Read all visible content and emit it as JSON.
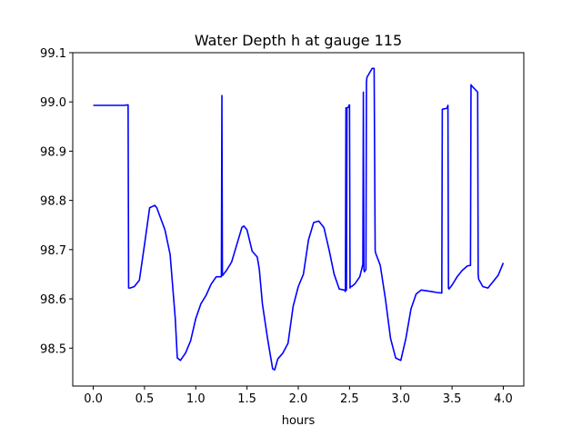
{
  "chart_data": {
    "type": "line",
    "title": "Water Depth h at gauge 115",
    "xlabel": "hours",
    "ylabel": "",
    "xlim": [
      -0.2,
      4.2
    ],
    "ylim": [
      98.423,
      99.1
    ],
    "xticks": [
      0.0,
      0.5,
      1.0,
      1.5,
      2.0,
      2.5,
      3.0,
      3.5,
      4.0
    ],
    "xtick_labels": [
      "0.0",
      "0.5",
      "1.0",
      "1.5",
      "2.0",
      "2.5",
      "3.0",
      "3.5",
      "4.0"
    ],
    "yticks": [
      98.5,
      98.6,
      98.7,
      98.8,
      98.9,
      99.0,
      99.1
    ],
    "ytick_labels": [
      "98.5",
      "98.6",
      "98.7",
      "98.8",
      "98.9",
      "99.0",
      "99.1"
    ],
    "grid": false,
    "legend": "none",
    "series": [
      {
        "color": "#0000ff",
        "x": [
          0.0,
          0.1,
          0.2,
          0.3,
          0.34,
          0.345,
          0.36,
          0.4,
          0.45,
          0.5,
          0.55,
          0.6,
          0.62,
          0.65,
          0.7,
          0.75,
          0.8,
          0.82,
          0.85,
          0.9,
          0.95,
          1.0,
          1.05,
          1.1,
          1.15,
          1.2,
          1.25,
          1.255,
          1.26,
          1.265,
          1.27,
          1.3,
          1.35,
          1.4,
          1.45,
          1.47,
          1.5,
          1.55,
          1.6,
          1.62,
          1.65,
          1.7,
          1.75,
          1.77,
          1.8,
          1.85,
          1.9,
          1.95,
          2.0,
          2.05,
          2.1,
          2.15,
          2.2,
          2.25,
          2.3,
          2.35,
          2.4,
          2.45,
          2.46,
          2.465,
          2.47,
          2.47,
          2.475,
          2.48,
          2.49,
          2.495,
          2.5,
          2.505,
          2.51,
          2.52,
          2.55,
          2.6,
          2.63,
          2.635,
          2.64,
          2.645,
          2.66,
          2.665,
          2.67,
          2.72,
          2.74,
          2.75,
          2.755,
          2.76,
          2.8,
          2.85,
          2.9,
          2.95,
          3.0,
          3.05,
          3.1,
          3.15,
          3.2,
          3.3,
          3.35,
          3.4,
          3.405,
          3.45,
          3.46,
          3.465,
          3.47,
          3.5,
          3.55,
          3.6,
          3.65,
          3.68,
          3.685,
          3.69,
          3.75,
          3.755,
          3.76,
          3.8,
          3.85,
          3.9,
          3.95,
          4.0
        ],
        "y": [
          98.993,
          98.993,
          98.993,
          98.993,
          98.994,
          98.622,
          98.622,
          98.625,
          98.638,
          98.71,
          98.785,
          98.79,
          98.785,
          98.768,
          98.74,
          98.69,
          98.56,
          98.48,
          98.475,
          98.49,
          98.515,
          98.56,
          98.59,
          98.607,
          98.63,
          98.645,
          98.645,
          99.013,
          98.648,
          98.648,
          98.65,
          98.658,
          98.675,
          98.71,
          98.745,
          98.748,
          98.74,
          98.697,
          98.685,
          98.66,
          98.59,
          98.52,
          98.458,
          98.456,
          98.478,
          98.49,
          98.51,
          98.585,
          98.625,
          98.65,
          98.72,
          98.755,
          98.758,
          98.745,
          98.7,
          98.65,
          98.62,
          98.618,
          98.615,
          98.988,
          98.988,
          98.618,
          98.988,
          98.988,
          98.99,
          98.993,
          98.994,
          98.622,
          98.625,
          98.625,
          98.63,
          98.645,
          98.67,
          99.02,
          98.66,
          98.655,
          98.66,
          99.04,
          99.05,
          99.068,
          99.068,
          98.698,
          98.693,
          98.69,
          98.668,
          98.6,
          98.52,
          98.48,
          98.475,
          98.52,
          98.58,
          98.61,
          98.618,
          98.615,
          98.613,
          98.612,
          98.985,
          98.987,
          98.993,
          98.622,
          98.62,
          98.628,
          98.645,
          98.658,
          98.667,
          98.668,
          99.035,
          99.033,
          99.02,
          98.65,
          98.64,
          98.625,
          98.622,
          98.635,
          98.648,
          98.673
        ]
      }
    ]
  }
}
